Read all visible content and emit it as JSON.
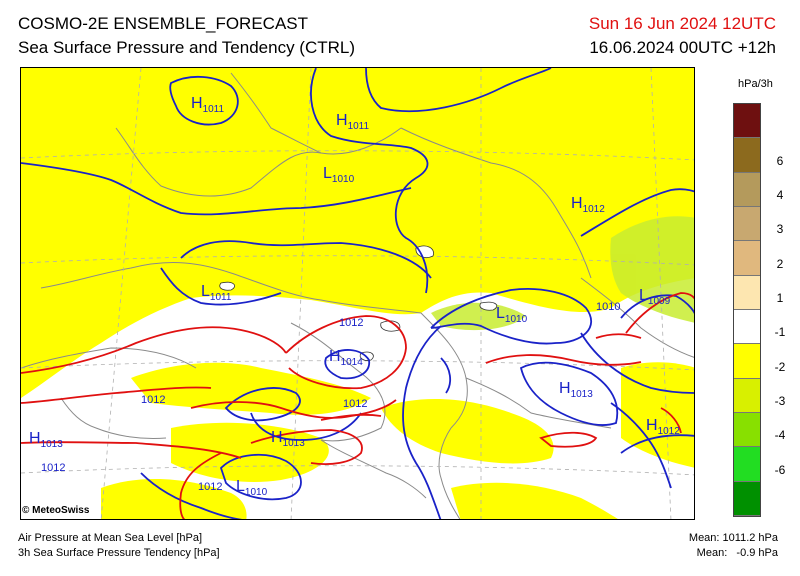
{
  "header": {
    "title_line1": "COSMO-2E ENSEMBLE_FORECAST",
    "title_line2": "Sea Surface Pressure and Tendency (CTRL)",
    "valid_time": "Sun 16 Jun 2024 12UTC",
    "run_time": "16.06.2024 00UTC +12h"
  },
  "legend": {
    "unit": "hPa/3h",
    "classes": [
      {
        "label": "",
        "color": "#6e1010"
      },
      {
        "label": "6",
        "color": "#8c6a1e"
      },
      {
        "label": "4",
        "color": "#b49a5c"
      },
      {
        "label": "3",
        "color": "#c8a870"
      },
      {
        "label": "2",
        "color": "#e0b87e"
      },
      {
        "label": "1",
        "color": "#fde6b0"
      },
      {
        "label": "-1",
        "color": "#ffffff"
      },
      {
        "label": "-2",
        "color": "#ffff00"
      },
      {
        "label": "-3",
        "color": "#d8f000"
      },
      {
        "label": "-4",
        "color": "#88e000"
      },
      {
        "label": "-6",
        "color": "#22dd22"
      },
      {
        "label": "",
        "color": "#009000"
      }
    ]
  },
  "map": {
    "pressure_centers": [
      {
        "type": "H",
        "value": "1011",
        "name": "high-1011-nw"
      },
      {
        "type": "H",
        "value": "1011",
        "name": "high-1011-north"
      },
      {
        "type": "L",
        "value": "1010",
        "name": "low-1010-north"
      },
      {
        "type": "H",
        "value": "1012",
        "name": "high-1012-east"
      },
      {
        "type": "L",
        "value": "1011",
        "name": "low-1011-west"
      },
      {
        "type": "L",
        "value": "1010",
        "name": "low-1010-center"
      },
      {
        "type": "L",
        "value": "1009",
        "name": "low-1009-east"
      },
      {
        "type": "H",
        "value": "1014",
        "name": "high-1014-center"
      },
      {
        "type": "H",
        "value": "1013",
        "name": "high-1013-southeast"
      },
      {
        "type": "H",
        "value": "1012",
        "name": "high-1012-southeast"
      },
      {
        "type": "H",
        "value": "1013",
        "name": "high-1013-west"
      },
      {
        "type": "H",
        "value": "1013",
        "name": "high-1013-south"
      },
      {
        "type": "L",
        "value": "1010",
        "name": "low-1010-south"
      }
    ],
    "isobar_labels": [
      "1012",
      "1012",
      "1012",
      "1010",
      "1012",
      "1012"
    ]
  },
  "footer": {
    "logo": "© MeteoSwiss",
    "line1": "Air Pressure at Mean Sea Level [hPa]",
    "line2": "3h Sea Surface Pressure Tendency [hPa]",
    "mean_pressure": "Mean: 1011.2 hPa",
    "mean_tendency": "Mean:   -0.9 hPa"
  },
  "colors": {
    "isobar_high": "#e01010",
    "isobar_low": "#1a22c8",
    "tendency_fall": "#ffff00",
    "tendency_strong_fall": "#c8ec30"
  }
}
